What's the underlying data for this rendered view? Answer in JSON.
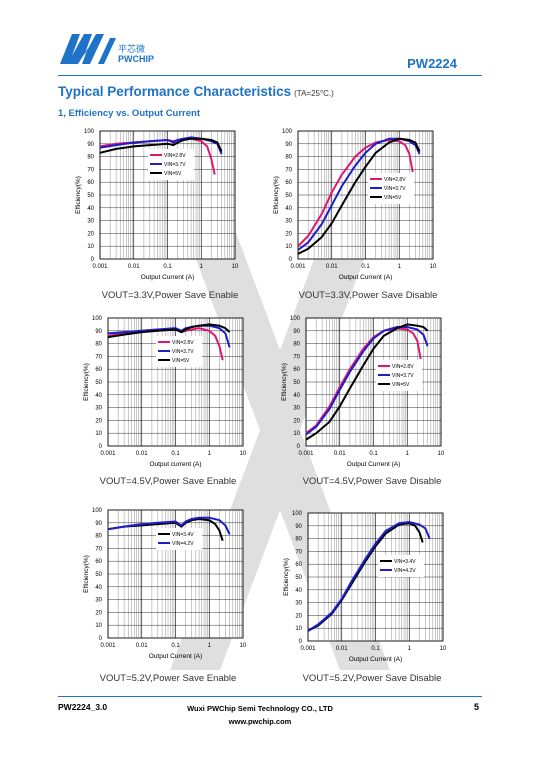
{
  "header": {
    "logo_cn": "平芯微",
    "logo_en": "PWCHIP",
    "part_number": "PW2224"
  },
  "section_title": "Typical Performance Characteristics",
  "section_condition": "(TA=25°C.)",
  "subsection_title": "1, Efficiency vs. Output Current",
  "colors": {
    "brand_blue": "#1e73c8",
    "vin_2_8": "#e0176f",
    "vin_3_7": "#1d1dc9",
    "vin_5": "#000000",
    "vin_3_4": "#000000",
    "vin_4_2": "#1d1dc9"
  },
  "chart_data": [
    {
      "type": "line",
      "caption": "VOUT=3.3V,Power Save Enable",
      "xlabel": "Output Current  (A)",
      "ylabel": "Efficiency(%)",
      "xscale": "log",
      "xlim": [
        0.001,
        10
      ],
      "ylim": [
        0,
        100
      ],
      "xticks": [
        "0.001",
        "0.01",
        "0.1",
        "1",
        "10"
      ],
      "yticks": [
        "0",
        "10",
        "20",
        "30",
        "40",
        "50",
        "60",
        "70",
        "80",
        "90",
        "100"
      ],
      "legend_position": "upper-middle",
      "series": [
        {
          "name": "VIN=2.8V",
          "color": "#e0176f",
          "x": [
            0.001,
            0.003,
            0.01,
            0.03,
            0.1,
            0.15,
            0.2,
            0.3,
            0.5,
            1,
            1.5,
            2,
            2.5
          ],
          "y": [
            88,
            90,
            91,
            92,
            93,
            92,
            93,
            94,
            94,
            92,
            88,
            78,
            66
          ]
        },
        {
          "name": "VIN=3.7V",
          "color": "#1d1dc9",
          "x": [
            0.001,
            0.003,
            0.01,
            0.03,
            0.1,
            0.15,
            0.2,
            0.3,
            0.5,
            1,
            2,
            3,
            4
          ],
          "y": [
            87,
            89,
            91,
            92,
            93,
            91,
            93,
            94,
            95,
            94,
            92,
            90,
            82
          ]
        },
        {
          "name": "VIN=5V",
          "color": "#000000",
          "x": [
            0.001,
            0.003,
            0.01,
            0.03,
            0.1,
            0.15,
            0.2,
            0.3,
            0.5,
            1,
            2,
            3,
            4
          ],
          "y": [
            83,
            86,
            88,
            89,
            90,
            89,
            91,
            93,
            94,
            94,
            93,
            91,
            84
          ]
        }
      ]
    },
    {
      "type": "line",
      "caption": "VOUT=3.3V,Power Save Disable",
      "xlabel": "Output Current  (A)",
      "ylabel": "Efficiency(%)",
      "xscale": "log",
      "xlim": [
        0.001,
        10
      ],
      "ylim": [
        0,
        100
      ],
      "xticks": [
        "0.001",
        "0.01",
        "0.1",
        "1",
        "10"
      ],
      "yticks": [
        "0",
        "10",
        "20",
        "30",
        "40",
        "50",
        "60",
        "70",
        "80",
        "90",
        "100"
      ],
      "legend_position": "right",
      "series": [
        {
          "name": "VIN=2.8V",
          "color": "#e0176f",
          "x": [
            0.001,
            0.002,
            0.005,
            0.01,
            0.02,
            0.05,
            0.1,
            0.2,
            0.5,
            1,
            1.5,
            2,
            2.5
          ],
          "y": [
            10,
            18,
            35,
            52,
            66,
            80,
            87,
            91,
            93,
            92,
            89,
            82,
            68
          ]
        },
        {
          "name": "VIN=3.7V",
          "color": "#1d1dc9",
          "x": [
            0.001,
            0.002,
            0.005,
            0.01,
            0.02,
            0.05,
            0.1,
            0.2,
            0.5,
            1,
            2,
            3,
            4
          ],
          "y": [
            7,
            13,
            27,
            42,
            57,
            73,
            83,
            90,
            94,
            94,
            92,
            89,
            82
          ]
        },
        {
          "name": "VIN=5V",
          "color": "#000000",
          "x": [
            0.001,
            0.002,
            0.005,
            0.01,
            0.02,
            0.05,
            0.1,
            0.2,
            0.5,
            1,
            2,
            3,
            4
          ],
          "y": [
            4,
            8,
            17,
            28,
            42,
            60,
            72,
            83,
            91,
            94,
            93,
            91,
            84
          ]
        }
      ]
    },
    {
      "type": "line",
      "caption": "VOUT=4.5V,Power Save Enable",
      "xlabel": "Output current  (A)",
      "ylabel": "Efficiency(%)",
      "xscale": "log",
      "xlim": [
        0.001,
        10
      ],
      "ylim": [
        0,
        100
      ],
      "xticks": [
        "0.001",
        "0.01",
        "0.1",
        "1",
        "10"
      ],
      "yticks": [
        "0",
        "10",
        "20",
        "30",
        "40",
        "50",
        "60",
        "70",
        "80",
        "90",
        "100"
      ],
      "legend_position": "upper-middle",
      "series": [
        {
          "name": "VIN=2.8V",
          "color": "#e0176f",
          "x": [
            0.001,
            0.003,
            0.01,
            0.03,
            0.1,
            0.15,
            0.2,
            0.3,
            0.5,
            1,
            1.5,
            2,
            2.5
          ],
          "y": [
            86,
            88,
            90,
            91,
            91,
            89,
            90,
            91,
            92,
            90,
            86,
            78,
            67
          ]
        },
        {
          "name": "VIN=3.7V",
          "color": "#1d1dc9",
          "x": [
            0.001,
            0.003,
            0.01,
            0.03,
            0.1,
            0.15,
            0.2,
            0.3,
            0.5,
            1,
            2,
            3,
            4
          ],
          "y": [
            88,
            89,
            90,
            91,
            92,
            90,
            92,
            93,
            94,
            94,
            92,
            88,
            77
          ]
        },
        {
          "name": "VIN=5V",
          "color": "#000000",
          "x": [
            0.001,
            0.003,
            0.01,
            0.03,
            0.1,
            0.15,
            0.2,
            0.3,
            0.5,
            1,
            2,
            3,
            4
          ],
          "y": [
            85,
            87,
            89,
            90,
            91,
            89,
            91,
            93,
            94,
            95,
            94,
            92,
            89
          ]
        }
      ]
    },
    {
      "type": "line",
      "caption": "VOUT=4.5V,Power Save Disable",
      "xlabel": "Output Current  (A)",
      "ylabel": "Efficiency(%)",
      "xscale": "log",
      "xlim": [
        0.001,
        10
      ],
      "ylim": [
        0,
        100
      ],
      "xticks": [
        "0.001",
        "0.01",
        "0.1",
        "1",
        "10"
      ],
      "yticks": [
        "0",
        "10",
        "20",
        "30",
        "40",
        "50",
        "60",
        "70",
        "80",
        "90",
        "100"
      ],
      "legend_position": "right",
      "series": [
        {
          "name": "VIN=2.8V",
          "color": "#e0176f",
          "x": [
            0.001,
            0.002,
            0.005,
            0.01,
            0.02,
            0.05,
            0.1,
            0.2,
            0.5,
            1,
            1.5,
            2,
            2.5
          ],
          "y": [
            10,
            16,
            31,
            46,
            60,
            76,
            85,
            90,
            92,
            91,
            88,
            82,
            68
          ]
        },
        {
          "name": "VIN=3.7V",
          "color": "#1d1dc9",
          "x": [
            0.001,
            0.002,
            0.005,
            0.01,
            0.02,
            0.05,
            0.1,
            0.2,
            0.5,
            1,
            2,
            3,
            4
          ],
          "y": [
            9,
            15,
            29,
            44,
            58,
            74,
            84,
            90,
            93,
            93,
            91,
            87,
            78
          ]
        },
        {
          "name": "VIN=5V",
          "color": "#000000",
          "x": [
            0.001,
            0.002,
            0.005,
            0.01,
            0.02,
            0.05,
            0.1,
            0.2,
            0.5,
            1,
            2,
            3,
            4
          ],
          "y": [
            5,
            10,
            19,
            31,
            45,
            63,
            76,
            86,
            92,
            95,
            94,
            93,
            90
          ]
        }
      ]
    },
    {
      "type": "line",
      "caption": "VOUT=5.2V,Power Save Enable",
      "xlabel": "Output Current  (A)",
      "ylabel": "Efficiency(%)",
      "xscale": "log",
      "xlim": [
        0.001,
        10
      ],
      "ylim": [
        0,
        100
      ],
      "xticks": [
        "0.001",
        "0.01",
        "0.1",
        "1",
        "10"
      ],
      "yticks": [
        "0",
        "10",
        "20",
        "30",
        "40",
        "50",
        "60",
        "70",
        "80",
        "90",
        "100"
      ],
      "legend_position": "upper-middle",
      "series": [
        {
          "name": "VIN=3.4V",
          "color": "#000000",
          "x": [
            0.001,
            0.003,
            0.01,
            0.03,
            0.1,
            0.15,
            0.2,
            0.3,
            0.5,
            1,
            1.5,
            2,
            2.5
          ],
          "y": [
            85,
            87,
            88,
            89,
            90,
            87,
            90,
            92,
            93,
            92,
            89,
            84,
            76
          ]
        },
        {
          "name": "VIN=4.2V",
          "color": "#1d1dc9",
          "x": [
            0.001,
            0.003,
            0.01,
            0.03,
            0.1,
            0.15,
            0.2,
            0.3,
            0.5,
            1,
            2,
            3,
            4
          ],
          "y": [
            85,
            87,
            89,
            90,
            91,
            88,
            91,
            93,
            94,
            94,
            92,
            88,
            81
          ]
        }
      ]
    },
    {
      "type": "line",
      "caption": "VOUT=5.2V,Power Save Disable",
      "xlabel": "Output Current  (A)",
      "ylabel": "Efficiency(%)",
      "xscale": "log",
      "xlim": [
        0.001,
        10
      ],
      "ylim": [
        0,
        100
      ],
      "xticks": [
        "0.001",
        "0.01",
        "0.1",
        "1",
        "10"
      ],
      "yticks": [
        "0",
        "10",
        "20",
        "30",
        "40",
        "50",
        "60",
        "70",
        "80",
        "90",
        "100"
      ],
      "legend_position": "right",
      "series": [
        {
          "name": "VIN=3.4V",
          "color": "#000000",
          "x": [
            0.001,
            0.002,
            0.005,
            0.01,
            0.02,
            0.05,
            0.1,
            0.2,
            0.5,
            1,
            1.5,
            2,
            2.5
          ],
          "y": [
            8,
            12,
            21,
            32,
            45,
            62,
            74,
            84,
            91,
            92,
            90,
            85,
            77
          ]
        },
        {
          "name": "VIN=4.2V",
          "color": "#1d1dc9",
          "x": [
            0.001,
            0.002,
            0.005,
            0.01,
            0.02,
            0.05,
            0.1,
            0.2,
            0.5,
            1,
            2,
            3,
            4
          ],
          "y": [
            8,
            13,
            22,
            33,
            47,
            64,
            76,
            86,
            92,
            93,
            91,
            88,
            80
          ]
        }
      ]
    }
  ],
  "footer": {
    "doc_id": "PW2224_3.0",
    "company": "Wuxi PWChip Semi Technology CO., LTD",
    "website": "www.pwchip.com",
    "page": "5"
  }
}
